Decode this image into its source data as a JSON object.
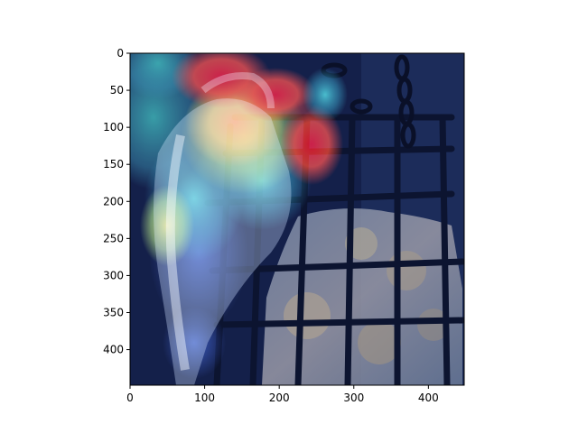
{
  "figure": {
    "image_description_icon": "woodpecker-on-suet-feeder-with-attention-heatmap",
    "x_axis": {
      "range": [
        0,
        448
      ],
      "ticks": [
        {
          "value": 0,
          "label": "0"
        },
        {
          "value": 100,
          "label": "100"
        },
        {
          "value": 200,
          "label": "200"
        },
        {
          "value": 300,
          "label": "300"
        },
        {
          "value": 400,
          "label": "400"
        }
      ]
    },
    "y_axis": {
      "range": [
        0,
        448
      ],
      "inverted": true,
      "ticks": [
        {
          "value": 0,
          "label": "0"
        },
        {
          "value": 50,
          "label": "50"
        },
        {
          "value": 100,
          "label": "100"
        },
        {
          "value": 150,
          "label": "150"
        },
        {
          "value": 200,
          "label": "200"
        },
        {
          "value": 250,
          "label": "250"
        },
        {
          "value": 300,
          "label": "300"
        },
        {
          "value": 350,
          "label": "350"
        },
        {
          "value": 400,
          "label": "400"
        }
      ]
    },
    "colors": {
      "background": "#1a2a5a",
      "heat_red": "#e0140a",
      "heat_yellow": "#f2e13a",
      "heat_cyan": "#36d6e0",
      "heat_blue": "#2a3fb0"
    }
  }
}
